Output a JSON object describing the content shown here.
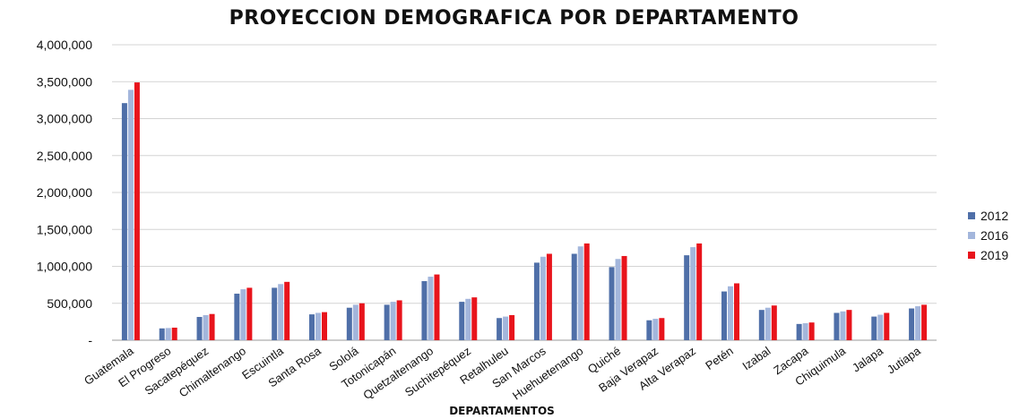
{
  "chart_data": {
    "type": "bar",
    "title": "PROYECCION DEMOGRAFICA POR DEPARTAMENTO",
    "xlabel": "DEPARTAMENTOS",
    "ylabel": "",
    "ylim": [
      0,
      4000000
    ],
    "y_ticks": [
      "-",
      "500,000",
      "1,000,000",
      "1,500,000",
      "2,000,000",
      "2,500,000",
      "3,000,000",
      "3,500,000",
      "4,000,000"
    ],
    "grid": true,
    "legend_position": "right",
    "categories": [
      "Guatemala",
      "El Progreso",
      "Sacatepéquez",
      "Chimaltenango",
      "Escuintla",
      "Santa Rosa",
      "Sololá",
      "Totonicapán",
      "Quetzaltenango",
      "Suchitepéquez",
      "Retalhuleu",
      "San Marcos",
      "Huehuetenango",
      "Quiché",
      "Baja Verapaz",
      "Alta Verapaz",
      "Petén",
      "Izabal",
      "Zacapa",
      "Chiquimula",
      "Jalapa",
      "Jutiapa"
    ],
    "series": [
      {
        "name": "2012",
        "color": "#4F6FA8",
        "values": [
          3210000,
          160000,
          315000,
          630000,
          710000,
          350000,
          440000,
          480000,
          800000,
          520000,
          300000,
          1050000,
          1170000,
          990000,
          270000,
          1150000,
          660000,
          410000,
          220000,
          370000,
          320000,
          430000
        ]
      },
      {
        "name": "2016",
        "color": "#A3B6DC",
        "values": [
          3390000,
          165000,
          340000,
          690000,
          760000,
          370000,
          480000,
          520000,
          860000,
          560000,
          320000,
          1130000,
          1270000,
          1100000,
          290000,
          1260000,
          730000,
          440000,
          230000,
          390000,
          345000,
          460000
        ]
      },
      {
        "name": "2019",
        "color": "#E8141C",
        "values": [
          3490000,
          170000,
          355000,
          710000,
          790000,
          380000,
          500000,
          540000,
          890000,
          580000,
          340000,
          1170000,
          1310000,
          1140000,
          300000,
          1310000,
          770000,
          470000,
          240000,
          410000,
          370000,
          480000
        ]
      }
    ]
  }
}
